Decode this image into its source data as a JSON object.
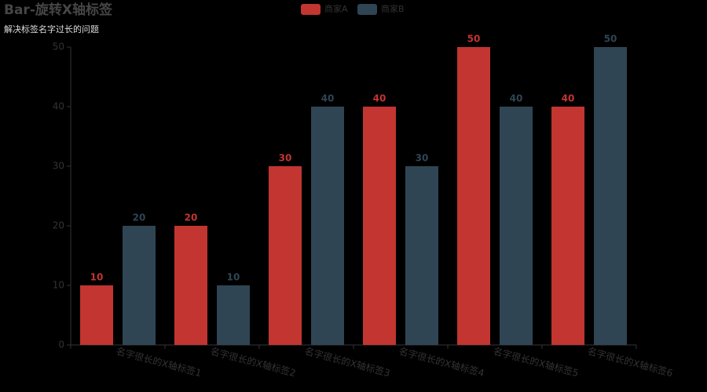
{
  "chart_data": {
    "type": "bar",
    "title": "Bar-旋转X轴标签",
    "subtitle": "解决标签名字过长的问题",
    "categories": [
      "名字很长的X轴标签1",
      "名字很长的X轴标签2",
      "名字很长的X轴标签3",
      "名字很长的X轴标签4",
      "名字很长的X轴标签5",
      "名字很长的X轴标签6"
    ],
    "series": [
      {
        "name": "商家A",
        "color": "#c23531",
        "values": [
          10,
          20,
          30,
          40,
          50,
          40
        ]
      },
      {
        "name": "商家B",
        "color": "#2f4554",
        "values": [
          20,
          10,
          40,
          30,
          40,
          50
        ]
      }
    ],
    "ylim": [
      0,
      50
    ],
    "yticks": [
      0,
      10,
      20,
      30,
      40,
      50
    ],
    "x_label_rotate": -15
  }
}
